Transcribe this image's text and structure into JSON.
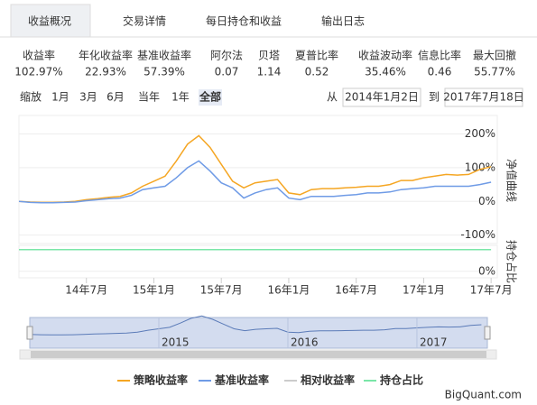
{
  "tabs": [
    "收益概况",
    "交易详情",
    "每日持仓和收益",
    "输出日志"
  ],
  "metrics": [
    {
      "label": "收益率",
      "value": "102.97%"
    },
    {
      "label": "年化收益率",
      "value": "22.93%"
    },
    {
      "label": "基准收益率",
      "value": "57.39%"
    },
    {
      "label": "阿尔法",
      "value": "0.07"
    },
    {
      "label": "贝塔",
      "value": "1.14"
    },
    {
      "label": "夏普比率",
      "value": "0.52"
    },
    {
      "label": "收益波动率",
      "value": "35.46%"
    },
    {
      "label": "信息比率",
      "value": "0.46"
    },
    {
      "label": "最大回撤",
      "value": "55.77%"
    }
  ],
  "range": {
    "zoom_label": "缩放",
    "buttons": [
      "1月",
      "3月",
      "6月",
      "当年",
      "1年",
      "全部"
    ],
    "from_label": "从",
    "start": "2014年1月2日",
    "to_label": "到",
    "end": "2017年7月18日"
  },
  "chart_data": {
    "type": "line",
    "y_label": "净值曲线",
    "y2_label": "持仓占比",
    "x": [
      "2014-01",
      "2014-02",
      "2014-03",
      "2014-04",
      "2014-05",
      "2014-06",
      "2014-07",
      "2014-08",
      "2014-09",
      "2014-10",
      "2014-11",
      "2014-12",
      "2015-01",
      "2015-02",
      "2015-03",
      "2015-04",
      "2015-05",
      "2015-06",
      "2015-07",
      "2015-08",
      "2015-09",
      "2015-10",
      "2015-11",
      "2015-12",
      "2016-01",
      "2016-02",
      "2016-03",
      "2016-04",
      "2016-05",
      "2016-06",
      "2016-07",
      "2016-08",
      "2016-09",
      "2016-10",
      "2016-11",
      "2016-12",
      "2017-01",
      "2017-02",
      "2017-03",
      "2017-04",
      "2017-05",
      "2017-06",
      "2017-07"
    ],
    "xticks": [
      {
        "value": "2014-07",
        "label": "14年7月"
      },
      {
        "value": "2015-01",
        "label": "15年1月"
      },
      {
        "value": "2015-07",
        "label": "15年7月"
      },
      {
        "value": "2016-01",
        "label": "16年1月"
      },
      {
        "value": "2016-07",
        "label": "16年7月"
      },
      {
        "value": "2017-01",
        "label": "17年1月"
      },
      {
        "value": "2017-07",
        "label": "17年7月"
      }
    ],
    "ylim": [
      -125,
      255
    ],
    "yticks": [
      {
        "value": -100,
        "label": "-100%"
      },
      {
        "value": 0,
        "label": "0%"
      },
      {
        "value": 100,
        "label": "100%"
      },
      {
        "value": 200,
        "label": "200%"
      }
    ],
    "y2lim": [
      -30,
      120
    ],
    "y2ticks": [
      {
        "value": 0,
        "label": "0%"
      }
    ],
    "series": [
      {
        "name": "策略收益率",
        "color": "#f5a623",
        "values": [
          0,
          -2,
          -3,
          -3,
          -2,
          0,
          5,
          8,
          12,
          15,
          25,
          45,
          60,
          75,
          120,
          170,
          195,
          160,
          110,
          60,
          40,
          55,
          60,
          65,
          25,
          20,
          35,
          38,
          38,
          40,
          42,
          45,
          45,
          50,
          62,
          62,
          70,
          75,
          80,
          78,
          80,
          95,
          103
        ]
      },
      {
        "name": "基准收益率",
        "color": "#6f9be6",
        "values": [
          0,
          -3,
          -4,
          -4,
          -3,
          -2,
          2,
          5,
          8,
          10,
          18,
          35,
          40,
          45,
          70,
          100,
          120,
          90,
          55,
          40,
          10,
          25,
          35,
          40,
          10,
          5,
          15,
          15,
          15,
          18,
          20,
          25,
          25,
          28,
          35,
          38,
          40,
          45,
          45,
          45,
          45,
          50,
          57
        ]
      },
      {
        "name": "相对收益率",
        "color": "#cccccc",
        "visible": false
      },
      {
        "name": "持仓占比",
        "color": "#7ae6a8",
        "axis": "y2",
        "values": [
          100,
          100,
          100,
          100,
          100,
          100,
          100,
          100,
          100,
          100,
          100,
          100,
          100,
          100,
          100,
          100,
          100,
          100,
          100,
          100,
          100,
          100,
          100,
          100,
          100,
          100,
          100,
          100,
          100,
          100,
          100,
          100,
          100,
          100,
          100,
          100,
          100,
          100,
          100,
          100,
          100,
          100,
          100
        ]
      }
    ],
    "navigator_labels": [
      {
        "value": "2015-01",
        "label": "2015"
      },
      {
        "value": "2016-01",
        "label": "2016"
      },
      {
        "value": "2017-01",
        "label": "2017"
      }
    ]
  },
  "footer": "BigQuant.com"
}
